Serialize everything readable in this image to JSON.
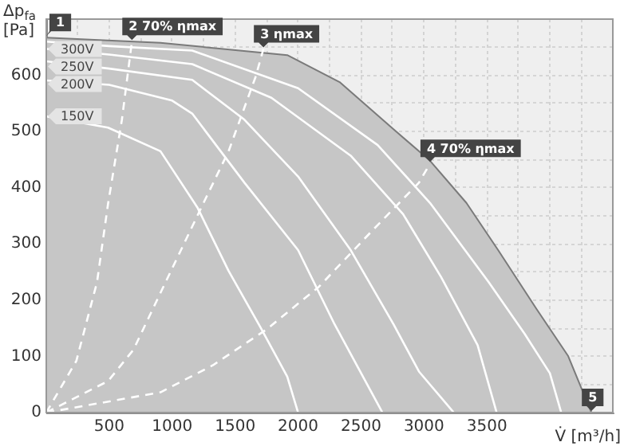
{
  "chart_data": {
    "type": "line",
    "xlabel": "V̇ [m³/h]",
    "ylabel": "Δp$_{fa}$ [Pa]",
    "xlim": [
      0,
      4500
    ],
    "ylim": [
      0,
      700
    ],
    "xticks": [
      {
        "value": 250,
        "label": null
      },
      500,
      {
        "value": 750,
        "label": null
      },
      1000,
      {
        "value": 1250,
        "label": null
      },
      1500,
      {
        "value": 1750,
        "label": null
      },
      2000,
      {
        "value": 2250,
        "label": null
      },
      2500,
      {
        "value": 2750,
        "label": null
      },
      3000,
      {
        "value": 3250,
        "label": null
      },
      3500,
      {
        "value": 3750,
        "label": null
      },
      {
        "value": 4000,
        "label": null
      },
      {
        "value": 4250,
        "label": null
      }
    ],
    "yticks": [
      0,
      {
        "value": 50,
        "label": null
      },
      100,
      {
        "value": 150,
        "label": null
      },
      200,
      {
        "value": 250,
        "label": null
      },
      300,
      {
        "value": 350,
        "label": null
      },
      400,
      {
        "value": 450,
        "label": null
      },
      500,
      {
        "value": 550,
        "label": null
      },
      600,
      {
        "value": 650,
        "label": null
      }
    ],
    "grid": true,
    "legend": false,
    "marker": "none",
    "series": [
      {
        "type": "area",
        "color": "#c6c6c6",
        "x": [
          0,
          907,
          1537,
          1914,
          2330,
          2758,
          3048,
          3337,
          3589,
          3892,
          4144,
          4330
        ],
        "values": [
          667,
          658,
          644,
          636,
          588,
          504,
          448,
          373,
          289,
          185,
          101,
          0
        ]
      },
      {
        "name": "150V",
        "color": "#ffffff",
        "line_style": "solid",
        "x": [
          0,
          491,
          907,
          1200,
          1448,
          1700,
          1914,
          2000
        ],
        "values": [
          527,
          507,
          465,
          365,
          252,
          152,
          64,
          0
        ]
      },
      {
        "name": "200V",
        "color": "#ffffff",
        "line_style": "solid",
        "x": [
          0,
          500,
          1000,
          1159,
          1574,
          2000,
          2290,
          2670
        ],
        "values": [
          591,
          583,
          555,
          532,
          409,
          289,
          157,
          0
        ]
      },
      {
        "name": "250V",
        "color": "#ffffff",
        "line_style": "solid",
        "x": [
          0,
          500,
          1159,
          1574,
          2000,
          2418,
          2758,
          2960,
          3237
        ],
        "values": [
          625,
          612,
          592,
          521,
          420,
          289,
          157,
          73,
          0
        ]
      },
      {
        "name": "300V",
        "color": "#ffffff",
        "line_style": "solid",
        "x": [
          0,
          500,
          1159,
          1788,
          2418,
          2834,
          3136,
          3426,
          3577
        ],
        "values": [
          647,
          637,
          620,
          560,
          457,
          353,
          241,
          120,
          0
        ]
      },
      {
        "color": "#ffffff",
        "line_style": "solid",
        "x": [
          0,
          500,
          1159,
          2000,
          2632,
          3048,
          3514,
          3800,
          4000,
          4090
        ],
        "values": [
          660,
          652,
          644,
          577,
          476,
          373,
          232,
          140,
          70,
          0
        ]
      },
      {
        "color": "#ffffff",
        "line_style": "dashed",
        "x": [
          0,
          239,
          403,
          491,
          600,
          680
        ],
        "values": [
          0,
          92,
          232,
          372,
          520,
          660
        ]
      },
      {
        "color": "#ffffff",
        "line_style": "dashed",
        "x": [
          0,
          491,
          693,
          907,
          1247,
          1448,
          1662,
          1725
        ],
        "values": [
          0,
          56,
          112,
          213,
          372,
          465,
          597,
          647
        ]
      },
      {
        "color": "#ffffff",
        "line_style": "dashed",
        "x": [
          0,
          907,
          1322,
          1750,
          2166,
          2582,
          2960,
          3048
        ],
        "values": [
          0,
          36,
          84,
          148,
          224,
          322,
          409,
          443
        ]
      }
    ],
    "annotations": [
      {
        "text": "1",
        "x": 0,
        "y": 667
      },
      {
        "text": "2 70% ηmax",
        "x": 680,
        "y": 660
      },
      {
        "text": "3 ηmax",
        "x": 1725,
        "y": 647
      },
      {
        "text": "4 70% ηmax",
        "x": 3048,
        "y": 443
      },
      {
        "text": "5",
        "x": 4330,
        "y": 0
      }
    ]
  }
}
